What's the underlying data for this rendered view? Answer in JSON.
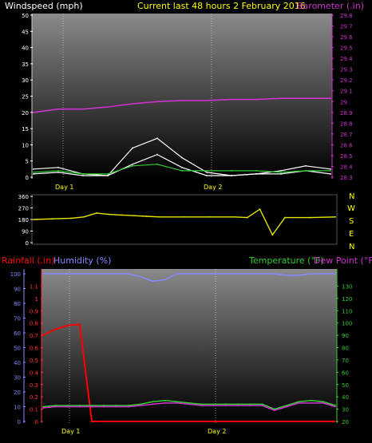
{
  "header": {
    "title": "Current last 48 hours 2 February 2016",
    "windspeed_label": "Windspeed (mph)",
    "barometer_label": "Barometer (.in)"
  },
  "colors": {
    "wind": "#ffffff",
    "gust_avg": "#33cc33",
    "barometer": "#cc33cc",
    "direction": "#e6e600",
    "rain": "#ff0000",
    "humidity": "#8888ff",
    "temperature": "#33cc33",
    "dewpoint": "#cc33cc",
    "title": "#ffff00"
  },
  "chart_data": [
    {
      "type": "line",
      "panel": "wind-barometer",
      "x_tick_labels": [
        "Day 1",
        "Day 2"
      ],
      "left_axis": {
        "label": "Windspeed (mph)",
        "ylim": [
          0,
          50
        ],
        "ticks": [
          "0",
          "5",
          "10",
          "15",
          "20",
          "25",
          "30",
          "35",
          "40",
          "45",
          "50"
        ]
      },
      "right_axis": {
        "label": "Barometer (.in)",
        "ylim": [
          28.3,
          29.8
        ],
        "ticks": [
          "28.3",
          "28.4",
          "28.5",
          "28.6",
          "28.7",
          "28.8",
          "28.9",
          "29",
          "29.1",
          "29.2",
          "29.3",
          "29.4",
          "29.5",
          "29.6",
          "29.7",
          "29.8"
        ]
      },
      "x": [
        0,
        4,
        8,
        12,
        16,
        20,
        24,
        28,
        32,
        36,
        40,
        44,
        48
      ],
      "series": [
        {
          "name": "Windspeed",
          "axis": "left",
          "values": [
            1,
            1.5,
            0.5,
            0.5,
            4,
            7,
            3,
            0.5,
            0.5,
            1,
            1,
            2,
            1
          ]
        },
        {
          "name": "Gust",
          "axis": "left",
          "values": [
            2.5,
            3,
            1,
            0.5,
            9,
            12,
            6,
            1.5,
            0.5,
            1,
            2,
            3.5,
            2.5
          ]
        },
        {
          "name": "Average",
          "axis": "left",
          "values": [
            1.5,
            2,
            1,
            1,
            3.5,
            4,
            2,
            2,
            2,
            2,
            1.5,
            2,
            2
          ]
        },
        {
          "name": "Barometer",
          "axis": "right",
          "values": [
            28.9,
            28.93,
            28.93,
            28.95,
            28.98,
            29.0,
            29.01,
            29.01,
            29.02,
            29.02,
            29.03,
            29.03,
            29.03
          ]
        }
      ]
    },
    {
      "type": "line",
      "panel": "wind-direction",
      "left_axis": {
        "ylim": [
          0,
          360
        ],
        "ticks": [
          "0",
          "90",
          "180",
          "270",
          "360"
        ]
      },
      "compass_labels": [
        "N",
        "W",
        "S",
        "E",
        "N"
      ],
      "x": [
        0,
        3,
        6,
        8,
        10,
        12,
        14,
        16,
        18,
        20,
        24,
        28,
        32,
        34,
        36,
        38,
        40,
        44,
        48
      ],
      "series": [
        {
          "name": "Wind Direction",
          "values": [
            180,
            185,
            190,
            200,
            230,
            220,
            215,
            210,
            205,
            200,
            200,
            200,
            200,
            195,
            260,
            60,
            195,
            195,
            200
          ]
        }
      ]
    },
    {
      "type": "line",
      "panel": "rain-humidity-temperature",
      "labels": {
        "rain": "Rainfall (.in)",
        "humidity": "Humidity (%)",
        "temperature": "Temperature (°F)",
        "dewpoint": "Dew Point (°F)"
      },
      "rain_axis": {
        "ylim": [
          0,
          1.2
        ],
        "ticks": [
          "0",
          "0.1",
          "0.2",
          "0.3",
          "0.4",
          "0.5",
          "0.6",
          "0.7",
          "0.8",
          "0.9",
          "1",
          "1.1"
        ]
      },
      "humidity_axis": {
        "ylim": [
          0,
          100
        ],
        "ticks": [
          "0",
          "10",
          "20",
          "30",
          "40",
          "50",
          "60",
          "70",
          "80",
          "90",
          "100"
        ]
      },
      "temp_axis": {
        "ylim": [
          20,
          140
        ],
        "ticks": [
          "20",
          "30",
          "40",
          "50",
          "60",
          "70",
          "80",
          "90",
          "100",
          "110",
          "120",
          "130"
        ]
      },
      "x": [
        0,
        2,
        4,
        6,
        8,
        10,
        12,
        14,
        16,
        18,
        20,
        22,
        24,
        26,
        28,
        30,
        32,
        34,
        36,
        38,
        40,
        42,
        44,
        46,
        48
      ],
      "series": [
        {
          "name": "Rainfall",
          "axis": "rain",
          "values": [
            0.7,
            0.75,
            0.78,
            0.79,
            0,
            0,
            0,
            0,
            0,
            0,
            0,
            0,
            0,
            0,
            0,
            0,
            0,
            0,
            0,
            0,
            0,
            0,
            0,
            0,
            0
          ]
        },
        {
          "name": "Humidity",
          "axis": "humidity",
          "values": [
            100,
            100,
            100,
            100,
            100,
            100,
            100,
            100,
            98,
            95,
            96,
            100,
            100,
            100,
            100,
            100,
            100,
            100,
            100,
            100,
            99,
            99,
            100,
            100,
            100
          ]
        },
        {
          "name": "Temperature",
          "axis": "temp",
          "values": [
            32,
            33,
            33,
            33,
            33,
            33,
            33,
            33,
            34,
            36,
            37,
            36,
            35,
            34,
            34,
            34,
            34,
            34,
            34,
            30,
            33,
            36,
            37,
            36,
            33
          ]
        },
        {
          "name": "Dew Point",
          "axis": "temp",
          "values": [
            31,
            32,
            32,
            32,
            32,
            32,
            32,
            32,
            33,
            34,
            35,
            35,
            34,
            33,
            33,
            33,
            33,
            33,
            33,
            29,
            32,
            35,
            35,
            35,
            32
          ]
        }
      ]
    }
  ]
}
